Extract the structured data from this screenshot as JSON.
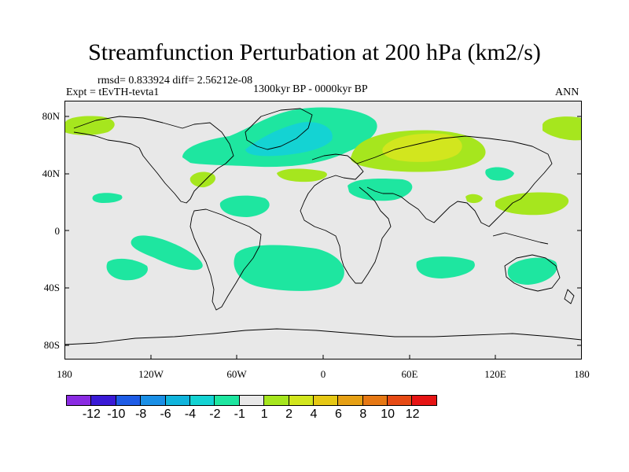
{
  "title": "Streamfunction Perturbation at 200 hPa (km2/s)",
  "stats_line": "rmsd= 0.833924  diff= 2.56212e-08",
  "experiment": "Expt = tEvTH-tevta1",
  "period": "1300kyr BP - 0000kyr BP",
  "season": "ANN",
  "axes": {
    "y_ticks": [
      "80N",
      "40N",
      "0",
      "40S",
      "80S"
    ],
    "x_ticks": [
      "180",
      "120W",
      "60W",
      "0",
      "60E",
      "120E",
      "180"
    ]
  },
  "colorbar": {
    "colors": [
      "#8a2be2",
      "#3a1ad6",
      "#1e5ce6",
      "#1a8fe6",
      "#10b4dc",
      "#14d3d3",
      "#1ee6a0",
      "#e8e8e8",
      "#a6e61e",
      "#d2e61e",
      "#e6c814",
      "#e6a014",
      "#e67814",
      "#e64a14",
      "#e61414"
    ],
    "labels": [
      "-12",
      "-10",
      "-8",
      "-6",
      "-4",
      "-2",
      "-1",
      "1",
      "2",
      "4",
      "6",
      "8",
      "10",
      "12"
    ]
  },
  "colors": {
    "background_map": "#e8e8e8",
    "level_neg1": "#1ee6a0",
    "level_neg2": "#14d3d3",
    "level_pos1": "#a6e61e",
    "level_pos2": "#d2e61e",
    "coast": "#000000"
  }
}
